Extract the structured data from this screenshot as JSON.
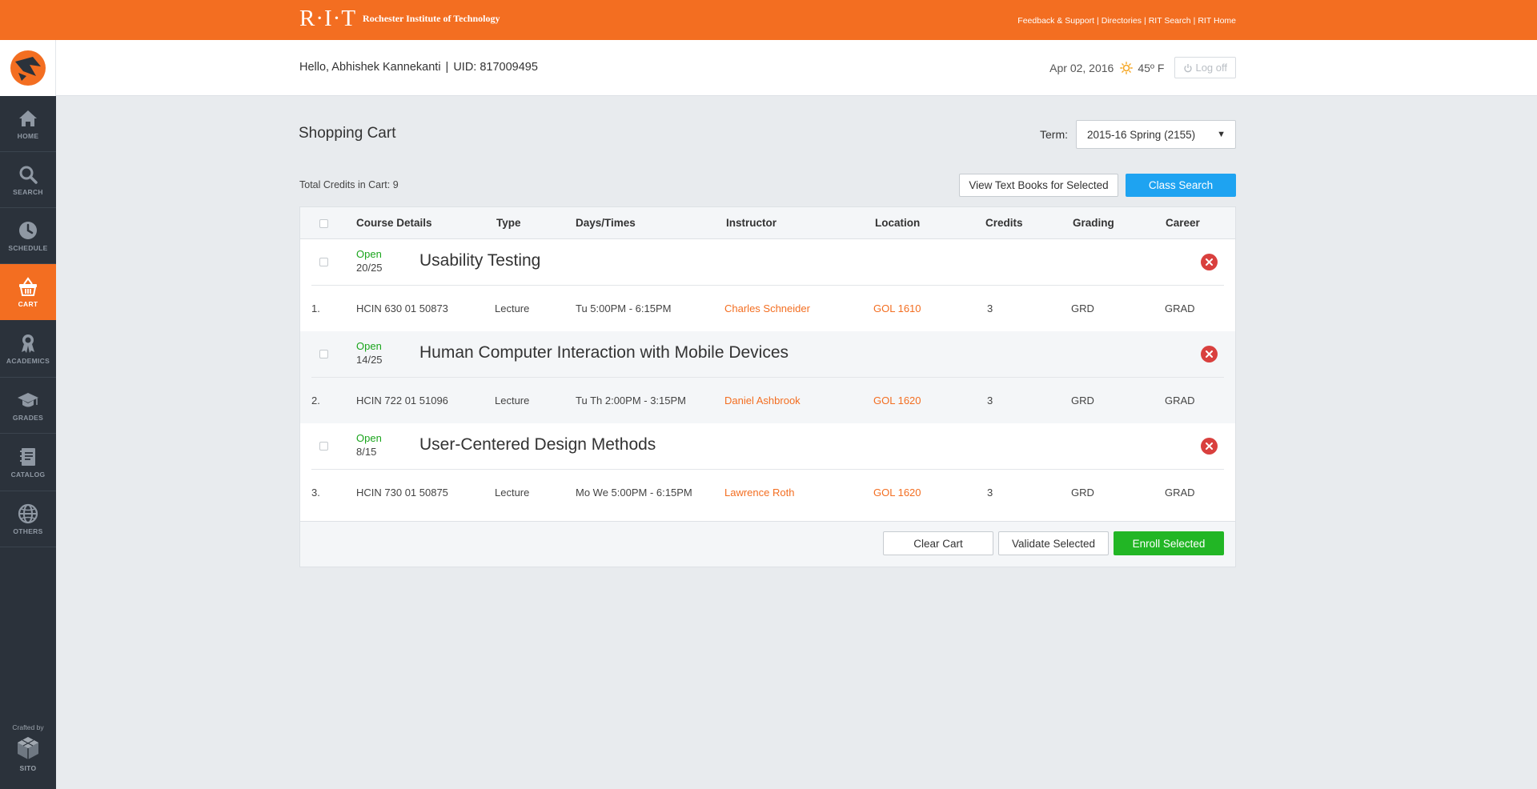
{
  "topbar": {
    "brand_mark": "R·I·T",
    "brand_name": "Rochester Institute of Technology",
    "links": [
      "Feedback & Support",
      "Directories",
      "RIT Search",
      "RIT Home"
    ],
    "separator": "|"
  },
  "sidebar": {
    "items": [
      {
        "label": "HOME",
        "icon": "home-icon"
      },
      {
        "label": "SEARCH",
        "icon": "search-icon"
      },
      {
        "label": "SCHEDULE",
        "icon": "clock-icon"
      },
      {
        "label": "CART",
        "icon": "basket-icon",
        "active": true
      },
      {
        "label": "ACADEMICS",
        "icon": "ribbon-icon"
      },
      {
        "label": "GRADES",
        "icon": "graduation-cap-icon"
      },
      {
        "label": "CATALOG",
        "icon": "notebook-icon"
      },
      {
        "label": "OTHERS",
        "icon": "globe-icon"
      }
    ],
    "crafted_by": "Crafted by",
    "crafter": "SITO"
  },
  "header": {
    "greeting": "Hello, Abhishek Kannekanti",
    "uid": "UID: 817009495",
    "date": "Apr 02, 2016",
    "temperature": "45º F",
    "logoff": "Log off"
  },
  "main": {
    "title": "Shopping Cart",
    "term_label": "Term:",
    "term_value": "2015-16 Spring (2155)",
    "total_credits": "Total Credits in Cart: 9",
    "view_textbooks": "View Text Books for Selected",
    "class_search": "Class Search"
  },
  "table": {
    "headers": [
      "Course Details",
      "Type",
      "Days/Times",
      "Instructor",
      "Location",
      "Credits",
      "Grading",
      "Career"
    ],
    "courses": [
      {
        "status": "Open",
        "seats": "20/25",
        "title": "Usability Testing",
        "num": "1.",
        "code": "HCIN 630 01 50873",
        "type": "Lecture",
        "times": "Tu 5:00PM - 6:15PM",
        "instructor": "Charles Schneider",
        "location": "GOL 1610",
        "credits": "3",
        "grading": "GRD",
        "career": "GRAD"
      },
      {
        "status": "Open",
        "seats": "14/25",
        "title": "Human Computer Interaction with Mobile Devices",
        "num": "2.",
        "code": "HCIN 722 01 51096",
        "type": "Lecture",
        "times": "Tu Th 2:00PM - 3:15PM",
        "instructor": "Daniel Ashbrook",
        "location": "GOL 1620",
        "credits": "3",
        "grading": "GRD",
        "career": "GRAD"
      },
      {
        "status": "Open",
        "seats": "8/15",
        "title": "User-Centered Design Methods",
        "num": "3.",
        "code": "HCIN 730 01 50875",
        "type": "Lecture",
        "times": "Mo We 5:00PM - 6:15PM",
        "instructor": "Lawrence Roth",
        "location": "GOL 1620",
        "credits": "3",
        "grading": "GRD",
        "career": "GRAD"
      }
    ]
  },
  "footer": {
    "clear_cart": "Clear Cart",
    "validate": "Validate Selected",
    "enroll": "Enroll Selected"
  },
  "colors": {
    "brand_orange": "#f36e21",
    "sidebar_bg": "#2b323b",
    "blue": "#1ea3f1",
    "green": "#22b625",
    "remove_red": "#d9403e",
    "open_green": "#1aa51c"
  }
}
